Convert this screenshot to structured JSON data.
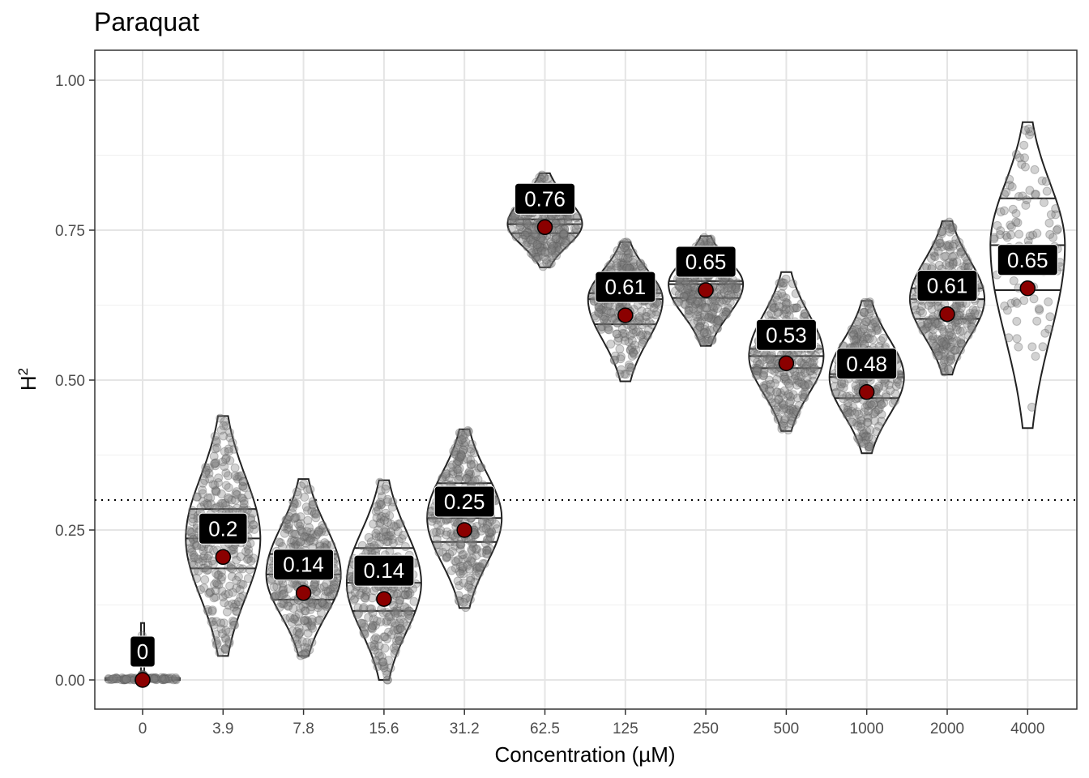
{
  "chart_data": {
    "type": "violin",
    "title": "Paraquat",
    "xlabel": "Concentration (µM)",
    "ylabel": "H",
    "ylabel_superscript": "2",
    "categories": [
      "0",
      "3.9",
      "7.8",
      "15.6",
      "31.2",
      "62.5",
      "125",
      "250",
      "500",
      "1000",
      "2000",
      "4000"
    ],
    "mean_values": [
      0,
      0.205,
      0.145,
      0.135,
      0.25,
      0.755,
      0.608,
      0.65,
      0.528,
      0.48,
      0.61,
      0.653
    ],
    "value_labels": [
      "0",
      "0.2",
      "0.14",
      "0.14",
      "0.25",
      "0.76",
      "0.61",
      "0.65",
      "0.53",
      "0.48",
      "0.61",
      "0.65"
    ],
    "ranges": [
      [
        0,
        0.095
      ],
      [
        0.04,
        0.44
      ],
      [
        0.04,
        0.335
      ],
      [
        0,
        0.333
      ],
      [
        0.12,
        0.418
      ],
      [
        0.688,
        0.845
      ],
      [
        0.498,
        0.73
      ],
      [
        0.557,
        0.74
      ],
      [
        0.415,
        0.68
      ],
      [
        0.378,
        0.632
      ],
      [
        0.509,
        0.765
      ],
      [
        0.42,
        0.93
      ]
    ],
    "quartiles": [
      [
        0,
        0,
        0
      ],
      [
        0.186,
        0.236,
        0.285
      ],
      [
        0.134,
        0.176,
        0.21
      ],
      [
        0.115,
        0.162,
        0.22
      ],
      [
        0.23,
        0.27,
        0.328
      ],
      [
        0.745,
        0.76,
        0.768
      ],
      [
        0.593,
        0.635,
        0.645
      ],
      [
        0.637,
        0.66,
        0.665
      ],
      [
        0.52,
        0.54,
        0.552
      ],
      [
        0.47,
        0.505,
        0.51
      ],
      [
        0.602,
        0.635,
        0.653
      ],
      [
        0.65,
        0.725,
        0.803
      ]
    ],
    "reference_line": 0.3,
    "yticks": [
      "0.00",
      "0.25",
      "0.50",
      "0.75",
      "1.00"
    ],
    "ylim": [
      -0.05,
      1.05
    ],
    "colors": {
      "mean_point": "#8b0000",
      "jitter_point": "#7f7f7f",
      "label_bg": "#000000",
      "label_text": "#ffffff"
    }
  }
}
